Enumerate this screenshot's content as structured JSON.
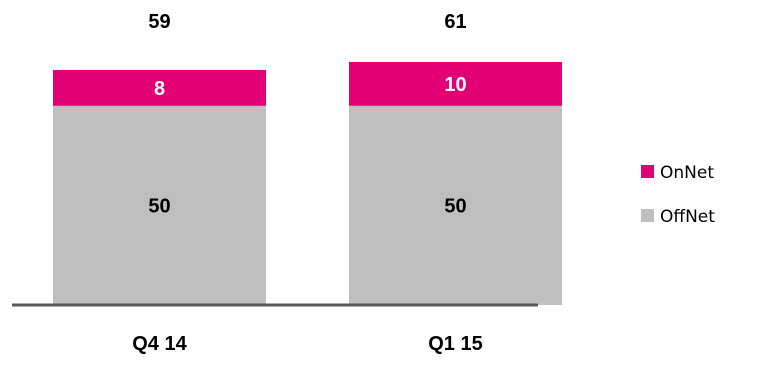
{
  "chart_data": {
    "type": "bar",
    "stacked": true,
    "categories": [
      "Q4 14",
      "Q1 15"
    ],
    "series": [
      {
        "name": "OffNet",
        "values": [
          50,
          50
        ],
        "color": "#bfbfbf"
      },
      {
        "name": "OnNet",
        "values": [
          8,
          10
        ],
        "color": "#e20074"
      }
    ],
    "totals": [
      59,
      61
    ],
    "title": "",
    "xlabel": "",
    "ylabel": "",
    "ylim": [
      0,
      61
    ],
    "grid": false,
    "legend_position": "right",
    "axis_color": "#595959"
  }
}
